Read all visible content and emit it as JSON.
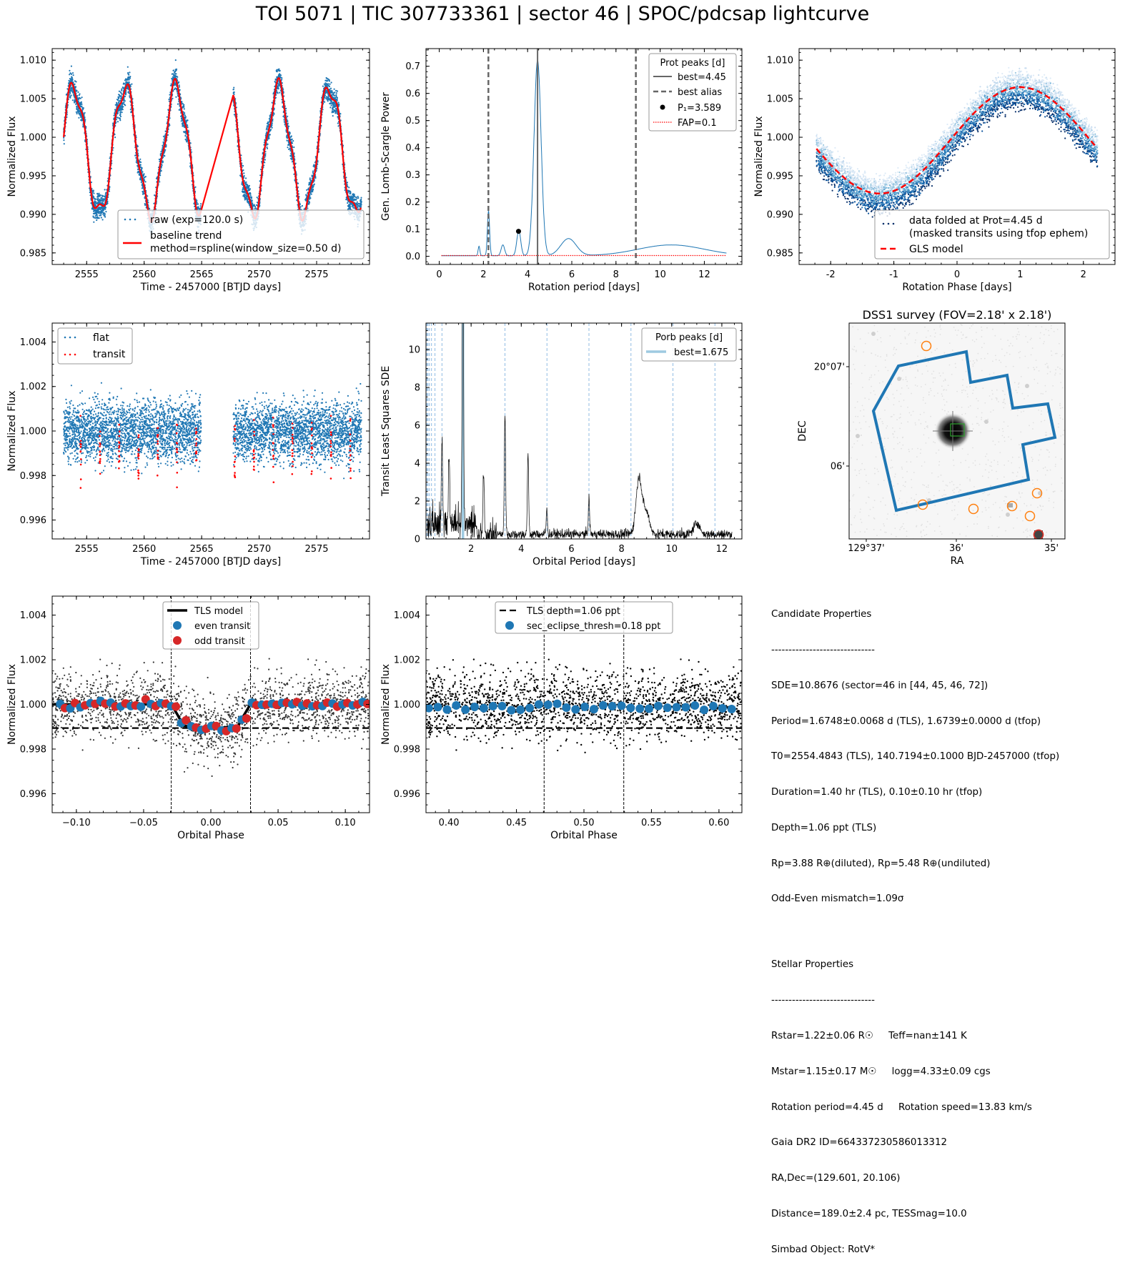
{
  "title": "TOI 5071 | TIC 307733361 | sector 46 | SPOC/pdcsap lightcurve",
  "chart_data": [
    {
      "id": "raw",
      "type": "scatter",
      "xlabel": "Time - 2457000 [BTJD days]",
      "ylabel": "Normalized Flux",
      "xlim": [
        2552,
        2579.6
      ],
      "ylim": [
        0.9835,
        1.0115
      ],
      "xticks": [
        2555,
        2560,
        2565,
        2570,
        2575
      ],
      "yticks": [
        0.985,
        0.99,
        0.995,
        1.0,
        1.005,
        1.01
      ],
      "ytick_labels": [
        "0.985",
        "0.990",
        "0.995",
        "1.000",
        "1.005",
        "1.010"
      ],
      "segments": [
        [
          2553.0,
          2564.95
        ],
        [
          2567.75,
          2578.9
        ]
      ],
      "trend": {
        "amplitude": 0.0082,
        "offset": 0.9983,
        "period": 4.45,
        "phase0": 2556.1
      },
      "legend": [
        "raw (exp=120.0 s)",
        "baseline trend\nmethod=rspline(window_size=0.50 d)"
      ],
      "legend_position": "lower right",
      "colors": {
        "raw": "#1f77b4",
        "trend": "#ff0000"
      }
    },
    {
      "id": "gls",
      "type": "line",
      "xlabel": "Rotation period [days]",
      "ylabel": "Gen. Lomb-Scargle Power",
      "xlim": [
        -0.6,
        13.7
      ],
      "ylim": [
        -0.03,
        0.765
      ],
      "xticks": [
        0,
        2,
        4,
        6,
        8,
        10,
        12
      ],
      "yticks": [
        0.0,
        0.1,
        0.2,
        0.3,
        0.4,
        0.5,
        0.6,
        0.7
      ],
      "ytick_labels": [
        "0.0",
        "0.1",
        "0.2",
        "0.3",
        "0.4",
        "0.5",
        "0.6",
        "0.7"
      ],
      "best_period": 4.45,
      "aliases": [
        2.225,
        8.9
      ],
      "p1": {
        "x": 3.589,
        "y": 0.092
      },
      "fap": 0.003,
      "peaks": [
        [
          4.45,
          0.72,
          0.16
        ],
        [
          2.23,
          0.165,
          0.05
        ],
        [
          3.6,
          0.092,
          0.09
        ],
        [
          1.8,
          0.035,
          0.04
        ],
        [
          2.88,
          0.04,
          0.08
        ],
        [
          5.85,
          0.063,
          0.35
        ],
        [
          10.5,
          0.04,
          1.5
        ]
      ],
      "legend_title": "Prot peaks [d]",
      "legend": [
        "best=4.45",
        "best alias",
        "P₁=3.589",
        "FAP=0.1"
      ],
      "legend_position": "upper right"
    },
    {
      "id": "fold",
      "type": "scatter",
      "xlabel": "Rotation Phase [days]",
      "ylabel": "Normalized Flux",
      "xlim": [
        -2.5,
        2.5
      ],
      "ylim": [
        0.9835,
        1.0115
      ],
      "xticks": [
        -2,
        -1,
        0,
        1,
        2
      ],
      "yticks": [
        0.985,
        0.99,
        0.995,
        1.0,
        1.005,
        1.01
      ],
      "ytick_labels": [
        "0.985",
        "0.990",
        "0.995",
        "1.000",
        "1.005",
        "1.010"
      ],
      "model": {
        "amplitude": 0.0069,
        "offset": 0.9996,
        "period": 4.45,
        "peak_phase": 1.0
      },
      "legend": [
        "data folded at Prot=4.45 d\n(masked transits using tfop ephem)",
        "GLS model"
      ],
      "legend_position": "lower right"
    },
    {
      "id": "flat",
      "type": "scatter",
      "xlabel": "Time - 2457000 [BTJD days]",
      "ylabel": "Normalized Flux",
      "xlim": [
        2552,
        2579.6
      ],
      "ylim": [
        0.99515,
        1.00485
      ],
      "xticks": [
        2555,
        2560,
        2565,
        2570,
        2575
      ],
      "yticks": [
        0.996,
        0.998,
        1.0,
        1.002,
        1.004
      ],
      "ytick_labels": [
        "0.996",
        "0.998",
        "1.000",
        "1.002",
        "1.004"
      ],
      "transit_times": [
        2554.48,
        2556.16,
        2557.83,
        2559.51,
        2561.18,
        2562.85,
        2564.53,
        2567.88,
        2569.55,
        2571.23,
        2572.9,
        2574.58,
        2576.25,
        2577.93
      ],
      "legend": [
        "flat",
        "transit"
      ],
      "legend_position": "upper left"
    },
    {
      "id": "tls",
      "type": "line",
      "xlabel": "Orbital Period [days]",
      "ylabel": "Transit Least Squares SDE",
      "xlim": [
        0.2,
        12.8
      ],
      "ylim": [
        0,
        11.4
      ],
      "xticks": [
        2,
        4,
        6,
        8,
        10,
        12
      ],
      "yticks": [
        0,
        2,
        4,
        6,
        8,
        10
      ],
      "best_period": 1.675,
      "harmonics": [
        0.209,
        0.239,
        0.279,
        0.335,
        0.419,
        0.558,
        0.8375,
        3.35,
        5.025,
        6.7,
        8.375,
        10.05,
        11.725
      ],
      "peaks": [
        [
          1.675,
          10.9
        ],
        [
          1.66,
          6.0
        ],
        [
          0.837,
          4.6
        ],
        [
          1.12,
          3.9
        ],
        [
          3.35,
          6.4
        ],
        [
          2.5,
          3.1
        ],
        [
          4.27,
          4.3
        ],
        [
          5.02,
          1.3
        ],
        [
          6.7,
          1.9
        ],
        [
          8.7,
          3.0
        ],
        [
          9.0,
          1.1
        ],
        [
          11.0,
          0.6
        ]
      ],
      "legend_title": "Porb peaks [d]",
      "legend": [
        "best=1.675"
      ],
      "legend_position": "upper right"
    },
    {
      "id": "dss",
      "type": "image",
      "title": "DSS1 survey (FOV=2.18' x 2.18')",
      "xlabel": "RA",
      "ylabel": "DEC",
      "xtick_labels": [
        "129°37'",
        "36'",
        "35'"
      ],
      "ytick_labels": [
        "20°07'",
        "06'"
      ],
      "aperture_color": "#1f77b4",
      "target_color": "#2ca02c",
      "neighbor_color": "#ff7f0e"
    },
    {
      "id": "odd_even",
      "type": "scatter",
      "xlabel": "Orbital Phase",
      "ylabel": "Normalized Flux",
      "xlim": [
        -0.118,
        0.118
      ],
      "ylim": [
        0.99515,
        1.00485
      ],
      "xticks": [
        -0.1,
        -0.05,
        0.0,
        0.05,
        0.1
      ],
      "xtick_labels": [
        "−0.10",
        "−0.05",
        "0.00",
        "0.05",
        "0.10"
      ],
      "yticks": [
        0.996,
        0.998,
        1.0,
        1.002,
        1.004
      ],
      "ytick_labels": [
        "0.996",
        "0.998",
        "1.000",
        "1.002",
        "1.004"
      ],
      "ingress": -0.0295,
      "egress": 0.0295,
      "depth_ppt": 1.06,
      "legend": [
        "TLS model",
        "even transit",
        "odd transit"
      ],
      "legend_position": "upper center",
      "colors": {
        "even": "#1f77b4",
        "odd": "#d62728"
      }
    },
    {
      "id": "secondary",
      "type": "scatter",
      "xlabel": "Orbital Phase",
      "ylabel": "Normalized Flux",
      "xlim": [
        0.383,
        0.617
      ],
      "ylim": [
        0.99515,
        1.00485
      ],
      "xticks": [
        0.4,
        0.45,
        0.5,
        0.55,
        0.6
      ],
      "xtick_labels": [
        "0.40",
        "0.45",
        "0.50",
        "0.55",
        "0.60"
      ],
      "yticks": [
        0.996,
        0.998,
        1.0,
        1.002,
        1.004
      ],
      "ytick_labels": [
        "0.996",
        "0.998",
        "1.000",
        "1.002",
        "1.004"
      ],
      "window": [
        0.4705,
        0.5295
      ],
      "depth_ppt": 1.06,
      "legend": [
        "TLS depth=1.06 ppt",
        "sec_eclipse_thresh=0.18 ppt"
      ],
      "legend_position": "upper center"
    }
  ],
  "candidate": {
    "header": "Candidate Properties",
    "rule": "------------------------------",
    "lines": [
      "SDE=10.8676 (sector=46 in [44, 45, 46, 72])",
      "Period=1.6748±0.0068 d (TLS), 1.6739±0.0000 d (tfop)",
      "T0=2554.4843 (TLS), 140.7194±0.1000 BJD-2457000 (tfop)",
      "Duration=1.40 hr (TLS), 0.10±0.10 hr (tfop)",
      "Depth=1.06 ppt (TLS)",
      "Rp=3.88 R⊕(diluted), Rp=5.48 R⊕(undiluted)",
      "Odd-Even mismatch=1.09σ"
    ]
  },
  "stellar": {
    "header": "Stellar Properties",
    "rule": "------------------------------",
    "lines": [
      "Rstar=1.22±0.06 R☉     Teff=nan±141 K",
      "Mstar=1.15±0.17 M☉     logg=4.33±0.09 cgs",
      "Rotation period=4.45 d     Rotation speed=13.83 km/s",
      "Gaia DR2 ID=664337230586013312",
      "RA,Dec=(129.601, 20.106)",
      "Distance=189.0±2.4 pc, TESSmag=10.0",
      "Simbad Object: RotV*"
    ]
  }
}
